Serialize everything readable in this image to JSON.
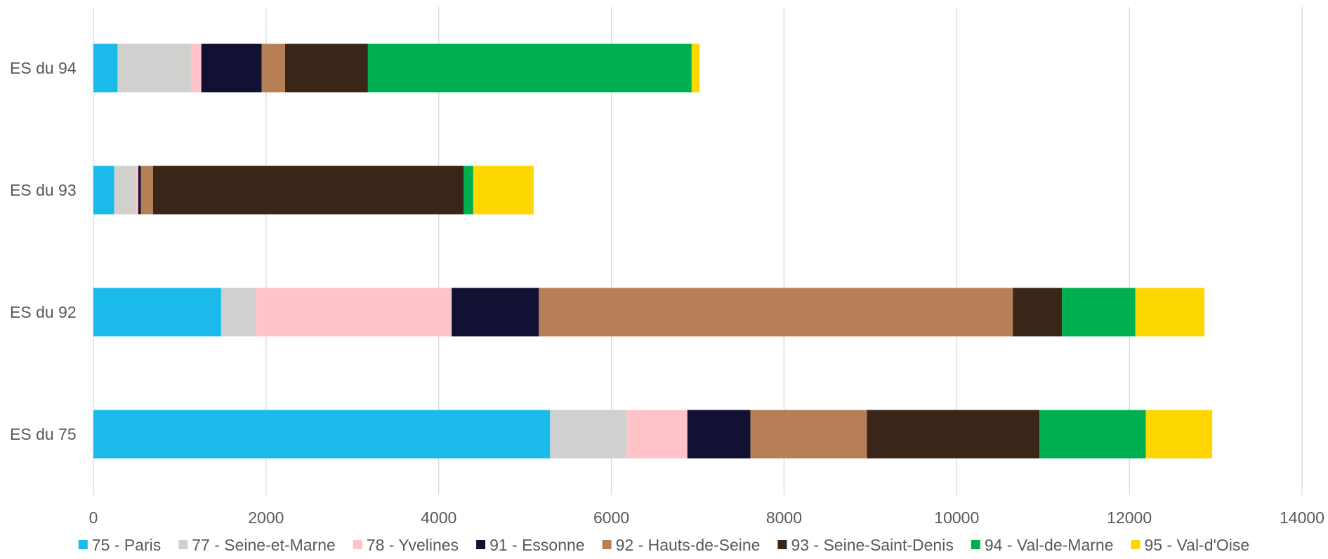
{
  "chart_data": {
    "type": "bar",
    "orientation": "horizontal",
    "stacked": true,
    "categories": [
      "ES du 75",
      "ES du 92",
      "ES du 93",
      "ES du 94"
    ],
    "series": [
      {
        "name": "75 - Paris",
        "color": "#1ABBEA",
        "values": [
          5290,
          1480,
          240,
          280
        ]
      },
      {
        "name": "77 - Seine-et-Marne",
        "color": "#D0D0CE",
        "values": [
          890,
          400,
          250,
          850
        ]
      },
      {
        "name": "78 - Yvelines",
        "color": "#FFC4C9",
        "values": [
          700,
          2270,
          30,
          120
        ]
      },
      {
        "name": "91 - Essonne",
        "color": "#111133",
        "values": [
          730,
          1010,
          30,
          700
        ]
      },
      {
        "name": "92 - Hauts-de-Seine",
        "color": "#B67F56",
        "values": [
          1350,
          5490,
          140,
          270
        ]
      },
      {
        "name": "93 - Seine-Saint-Denis",
        "color": "#3A2618",
        "values": [
          2000,
          570,
          3600,
          960
        ]
      },
      {
        "name": "94 - Val-de-Marne",
        "color": "#00B050",
        "values": [
          1230,
          850,
          110,
          3750
        ]
      },
      {
        "name": "95 - Val-d'Oise",
        "color": "#FFD700",
        "values": [
          770,
          800,
          700,
          90
        ]
      }
    ],
    "xlim": [
      0,
      14000
    ],
    "x_ticks": [
      0,
      2000,
      4000,
      6000,
      8000,
      10000,
      12000,
      14000
    ],
    "x_tick_labels": [
      "0",
      "2000",
      "4000",
      "6000",
      "8000",
      "10000",
      "12000",
      "14000"
    ],
    "grid": true,
    "legend_position": "bottom",
    "title": "",
    "xlabel": "",
    "ylabel": ""
  }
}
